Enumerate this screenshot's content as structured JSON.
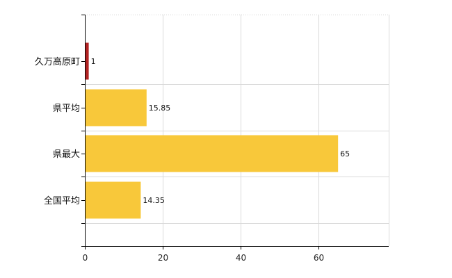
{
  "chart_data": {
    "type": "bar",
    "orientation": "horizontal",
    "categories": [
      "久万高原町",
      "県平均",
      "県最大",
      "全国平均"
    ],
    "values": [
      1,
      15.85,
      65,
      14.35
    ],
    "value_labels": [
      "1",
      "15.85",
      "65",
      "14.35"
    ],
    "colors": [
      "#b22222",
      "#f8c83a",
      "#f8c83a",
      "#f8c83a"
    ],
    "xlim": [
      0,
      78
    ],
    "xticks": [
      0,
      20,
      40,
      60
    ],
    "grid": true,
    "title": "",
    "xlabel": "",
    "ylabel": ""
  }
}
